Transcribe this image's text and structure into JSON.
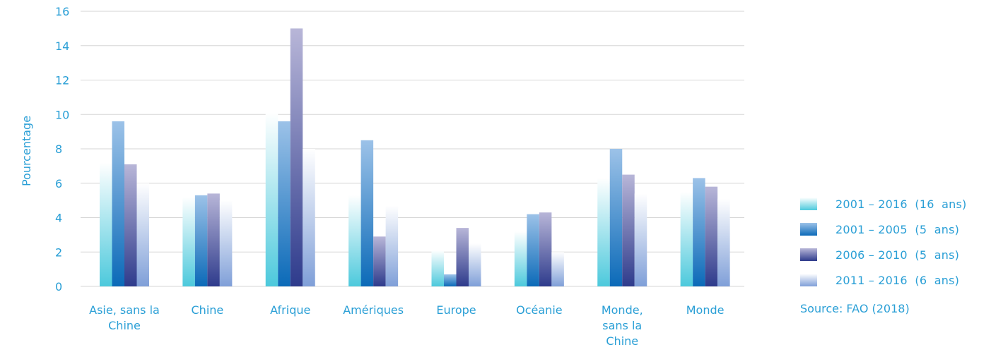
{
  "chart_data": {
    "type": "bar",
    "ylabel": "Pourcentage",
    "ylim": [
      0,
      16
    ],
    "yticks": [
      0,
      2,
      4,
      6,
      8,
      10,
      12,
      14,
      16
    ],
    "grid": true,
    "legend_position": "right",
    "categories": [
      [
        "Asie, sans la",
        "Chine"
      ],
      [
        "Chine"
      ],
      [
        "Afrique"
      ],
      [
        "Amériques"
      ],
      [
        "Europe"
      ],
      [
        "Océanie"
      ],
      [
        "Monde,",
        "sans la",
        "Chine"
      ],
      [
        "Monde"
      ]
    ],
    "series": [
      {
        "name": "2001 – 2016  (16  ans)",
        "values": [
          7.2,
          5.2,
          10.1,
          5.3,
          2.1,
          3.2,
          6.3,
          5.5
        ]
      },
      {
        "name": "2001 – 2005  (5  ans)",
        "values": [
          9.6,
          5.3,
          9.6,
          8.5,
          0.7,
          4.2,
          8.0,
          6.3
        ]
      },
      {
        "name": "2006 – 2010  (5  ans)",
        "values": [
          7.1,
          5.4,
          15.0,
          2.9,
          3.4,
          4.3,
          6.5,
          5.8
        ]
      },
      {
        "name": "2011 – 2016  (6  ans)",
        "values": [
          6.0,
          5.0,
          8.0,
          4.7,
          2.5,
          2.0,
          5.4,
          5.1
        ]
      }
    ],
    "colors": [
      "#4cc9dc",
      "#0b6ab8",
      "#2e3b8c",
      "#7f9fd8"
    ],
    "source": "Source: FAO (2018)"
  }
}
